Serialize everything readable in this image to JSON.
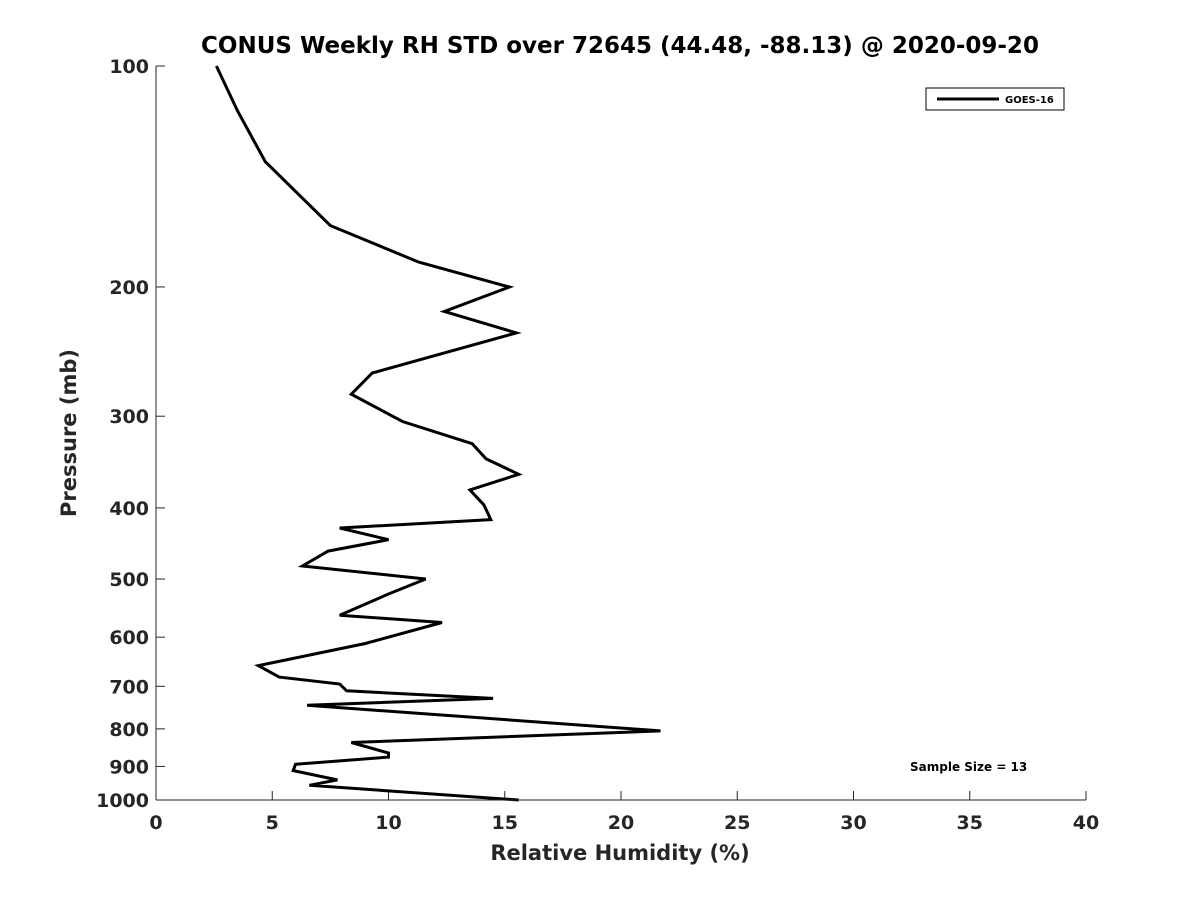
{
  "chart_data": {
    "type": "line",
    "title": "CONUS Weekly RH STD over 72645 (44.48, -88.13) @ 2020-09-20",
    "xlabel": "Relative Humidity (%)",
    "ylabel": "Pressure (mb)",
    "xlim": [
      0,
      40
    ],
    "ylim": [
      100,
      1000
    ],
    "yscale": "log",
    "yreversed": true,
    "grid": false,
    "legend_location": "top-right",
    "x_ticks": [
      0,
      5,
      10,
      15,
      20,
      25,
      30,
      35,
      40
    ],
    "y_ticks": [
      100,
      200,
      300,
      400,
      500,
      600,
      700,
      800,
      900,
      1000
    ],
    "annotation": "Sample Size = 13",
    "series": [
      {
        "name": "GOES-16",
        "color": "#000000",
        "x": [
          2.6,
          3.5,
          4.7,
          7.5,
          11.3,
          15.2,
          12.4,
          15.5,
          9.3,
          8.4,
          10.6,
          13.6,
          14.2,
          15.6,
          13.5,
          14.1,
          14.4,
          7.9,
          10.0,
          7.4,
          6.3,
          11.6,
          10.0,
          7.9,
          12.3,
          9.0,
          4.4,
          5.3,
          7.9,
          8.2,
          14.5,
          6.5,
          21.7,
          8.4,
          10.0,
          10.0,
          6.0,
          5.9,
          7.8,
          6.6,
          15.6
        ],
        "y": [
          100,
          115,
          135,
          165,
          185,
          200,
          216,
          231,
          262,
          280,
          305,
          327,
          343,
          360,
          378,
          396,
          415,
          426,
          442,
          458,
          480,
          500,
          524,
          560,
          573,
          612,
          656,
          680,
          695,
          710,
          727,
          743,
          805,
          835,
          863,
          874,
          894,
          912,
          939,
          955,
          1000
        ]
      }
    ]
  }
}
